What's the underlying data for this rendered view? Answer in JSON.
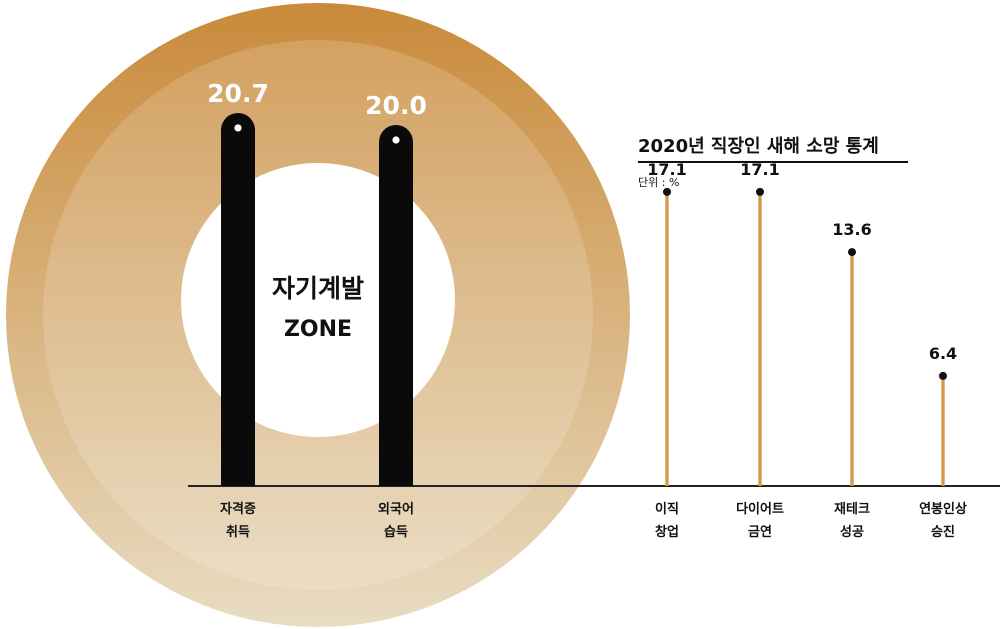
{
  "chart_data": {
    "type": "bar",
    "title": "2020년 직장인 새해 소망 통계",
    "unit": "단위 : %",
    "zone_label": [
      "자기계발",
      "ZONE"
    ],
    "ylim": [
      0,
      25
    ],
    "categories": [
      [
        "자격증",
        "취득"
      ],
      [
        "외국어",
        "습득"
      ],
      [
        "이직",
        "창업"
      ],
      [
        "다이어트",
        "금연"
      ],
      [
        "재테크",
        "성공"
      ],
      [
        "연봉인상",
        "승진"
      ]
    ],
    "values": [
      20.7,
      20.0,
      17.1,
      17.1,
      13.6,
      6.4
    ],
    "value_labels": [
      "20.7",
      "20.0",
      "17.1",
      "17.1",
      "13.6",
      "6.4"
    ],
    "highlight_count": 2,
    "colors": {
      "ring_outer": "#c98a3a",
      "ring_inner": "#e9dcc2",
      "highlight_bar": "#0a0a0a",
      "stem": "#d39a4a",
      "dot": "#111111",
      "axis": "#222222",
      "value_on_ring": "#ffffff",
      "text": "#111111"
    }
  }
}
